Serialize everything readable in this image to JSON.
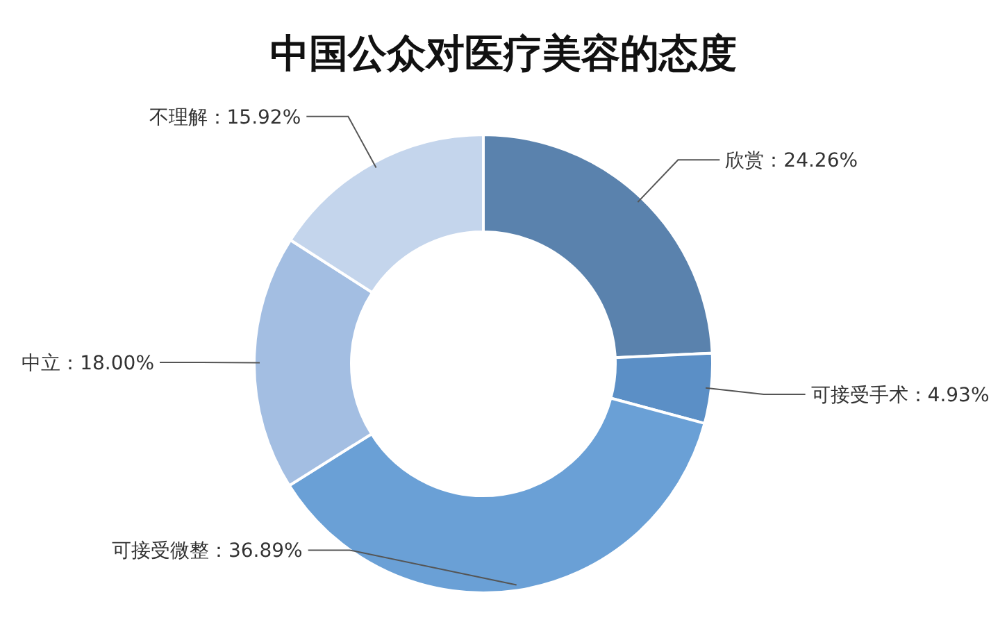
{
  "chart_data": {
    "type": "donut",
    "title": "中国公众对医疗美容的态度",
    "categories": [
      "欣赏",
      "可接受手术",
      "可接受微整",
      "中立",
      "不理解"
    ],
    "values": [
      24.26,
      4.93,
      36.89,
      18.0,
      15.92
    ],
    "colors": [
      "#5a82ad",
      "#5b8fc6",
      "#6aa0d6",
      "#a3bee2",
      "#c4d5ec"
    ],
    "value_labels": [
      "：24.26%",
      "：4.93%",
      "：36.89%",
      "：18.00%",
      "：15.92%"
    ]
  }
}
